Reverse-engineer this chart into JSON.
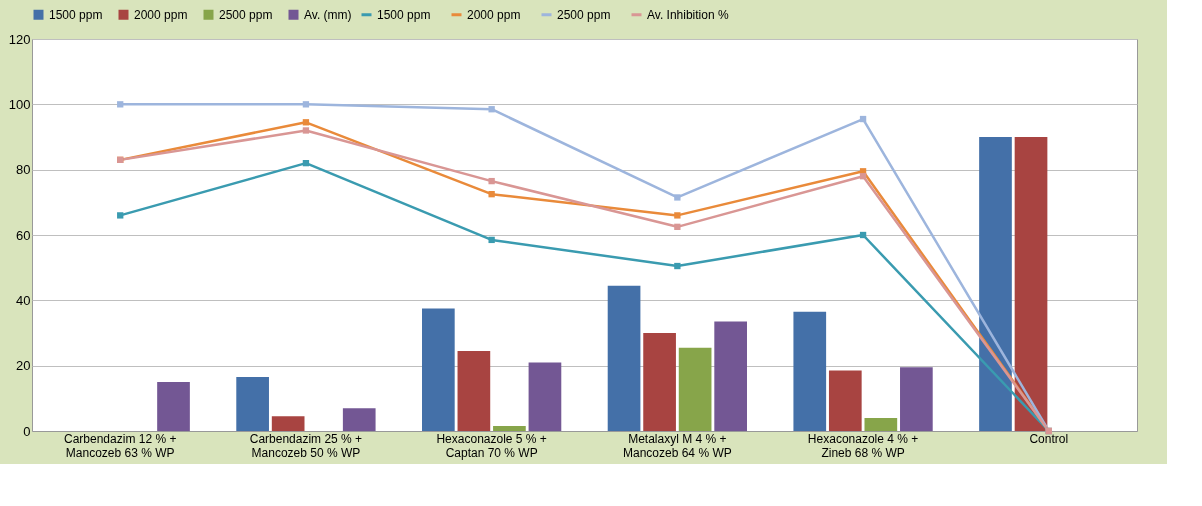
{
  "chart_data": {
    "type": "bar",
    "categories": [
      "Carbendazim 12  % + Mancozeb 63 % WP",
      "Carbendazim 25 % + Mancozeb 50 % WP",
      "Hexaconazole 5 % + Captan 70 % WP",
      "Metalaxyl M 4 % + Mancozeb 64 % WP",
      "Hexaconazole 4 % + Zineb 68 % WP",
      "Control"
    ],
    "series": [
      {
        "name": "1500 ppm",
        "color": "#4470a8",
        "values": [
          0,
          16.5,
          37.5,
          44.5,
          36.5,
          90
        ]
      },
      {
        "name": "2000 ppm",
        "color": "#a84441",
        "values": [
          0,
          4.5,
          24.5,
          30,
          18.5,
          90
        ]
      },
      {
        "name": "2500 ppm",
        "color": "#87a54a",
        "values": [
          0,
          0,
          1.5,
          25.5,
          4,
          null
        ]
      },
      {
        "name": "Av. (mm)",
        "color": "#735794",
        "values": [
          15,
          7,
          21,
          33.5,
          19.5,
          null
        ]
      },
      {
        "name": "1500 ppm",
        "type": "line",
        "color": "#3a9bb0",
        "values": [
          66,
          82,
          58.5,
          50.5,
          60,
          0
        ]
      },
      {
        "name": "2000 ppm",
        "type": "line",
        "color": "#e98a3a",
        "values": [
          83,
          94.5,
          72.5,
          66,
          79.5,
          0
        ]
      },
      {
        "name": "2500 ppm",
        "type": "line",
        "color": "#9db5dd",
        "values": [
          100,
          100,
          98.5,
          71.5,
          95.5,
          0
        ]
      },
      {
        "name": "Av. Inhibition %",
        "type": "line",
        "color": "#d99694",
        "values": [
          83,
          92,
          76.5,
          62.5,
          78,
          0
        ]
      }
    ],
    "ylim": [
      0,
      120
    ],
    "yticks": [
      0,
      20,
      40,
      60,
      80,
      100,
      120
    ],
    "grid": "y",
    "legend": "top",
    "marker": "square",
    "line_style": "solid"
  }
}
